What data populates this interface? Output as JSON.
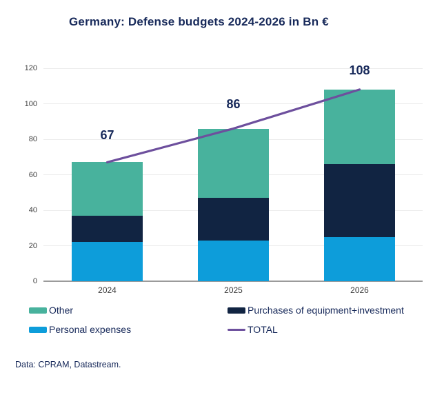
{
  "source_note": "Data: CPRAM, Datastream.",
  "chart_data": {
    "type": "bar",
    "subtype": "stacked-bars-with-total-line",
    "title": "Germany: Defense budgets 2024-2026 in Bn €",
    "categories": [
      "2024",
      "2025",
      "2026"
    ],
    "series": [
      {
        "name": "Personal expenses",
        "color": "#0d9dda",
        "values": [
          22,
          23,
          25
        ]
      },
      {
        "name": "Purchases of equipment+investment",
        "color": "#112442",
        "values": [
          15,
          24,
          41
        ]
      },
      {
        "name": "Other",
        "color": "#48b29d",
        "values": [
          30,
          39,
          42
        ]
      }
    ],
    "line_series": {
      "name": "TOTAL",
      "color": "#6d4f9d",
      "values": [
        67,
        86,
        108
      ]
    },
    "total_labels": [
      "67",
      "86",
      "108"
    ],
    "y_ticks": [
      0,
      20,
      40,
      60,
      80,
      100,
      120
    ],
    "ylim": [
      0,
      120
    ],
    "grid": true,
    "legend_position": "bottom",
    "colors": {
      "title_text": "#17295a",
      "tick_text": "#3d3d3d",
      "gridline": "#ececec",
      "axis_line": "#9b9b9b"
    }
  },
  "legend": {
    "items": [
      {
        "label": "Other",
        "swatch": "rect",
        "color": "#48b29d"
      },
      {
        "label": "Purchases of equipment+investment",
        "swatch": "rect",
        "color": "#112442"
      },
      {
        "label": "Personal expenses",
        "swatch": "rect",
        "color": "#0d9dda"
      },
      {
        "label": "TOTAL",
        "swatch": "line",
        "color": "#6d4f9d"
      }
    ]
  }
}
